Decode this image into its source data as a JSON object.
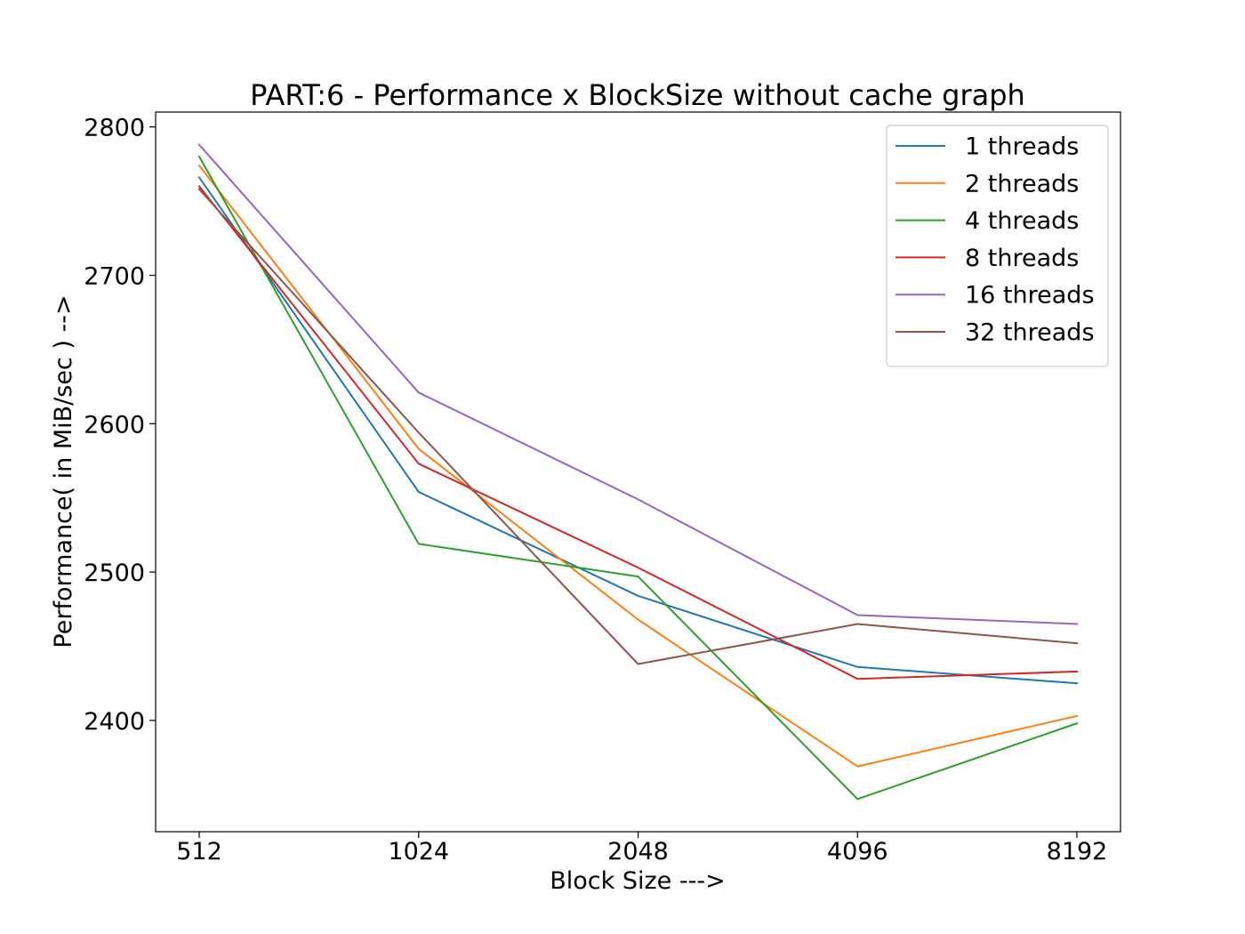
{
  "chart_data": {
    "type": "line",
    "title": "PART:6 - Performance x BlockSize without cache graph",
    "xlabel": "Block Size --->",
    "ylabel": "Performance( in MiB/sec ) -->",
    "categories": [
      "512",
      "1024",
      "2048",
      "4096",
      "8192"
    ],
    "ylim": [
      2325,
      2810
    ],
    "yticks": [
      2400,
      2500,
      2600,
      2700,
      2800
    ],
    "grid": false,
    "legend_position": "top-right",
    "series": [
      {
        "name": "1 threads",
        "color": "#1f77b4",
        "values": [
          2766,
          2554,
          2484,
          2436,
          2425
        ]
      },
      {
        "name": "2 threads",
        "color": "#ff7f0e",
        "values": [
          2774,
          2583,
          2468,
          2369,
          2403
        ]
      },
      {
        "name": "4 threads",
        "color": "#2ca02c",
        "values": [
          2780,
          2519,
          2497,
          2347,
          2398
        ]
      },
      {
        "name": "8 threads",
        "color": "#d62728",
        "values": [
          2760,
          2573,
          2503,
          2428,
          2433
        ]
      },
      {
        "name": "16 threads",
        "color": "#9467bd",
        "values": [
          2788,
          2621,
          2549,
          2471,
          2465
        ]
      },
      {
        "name": "32 threads",
        "color": "#8c564b",
        "values": [
          2758,
          2594,
          2438,
          2465,
          2452
        ]
      }
    ]
  }
}
